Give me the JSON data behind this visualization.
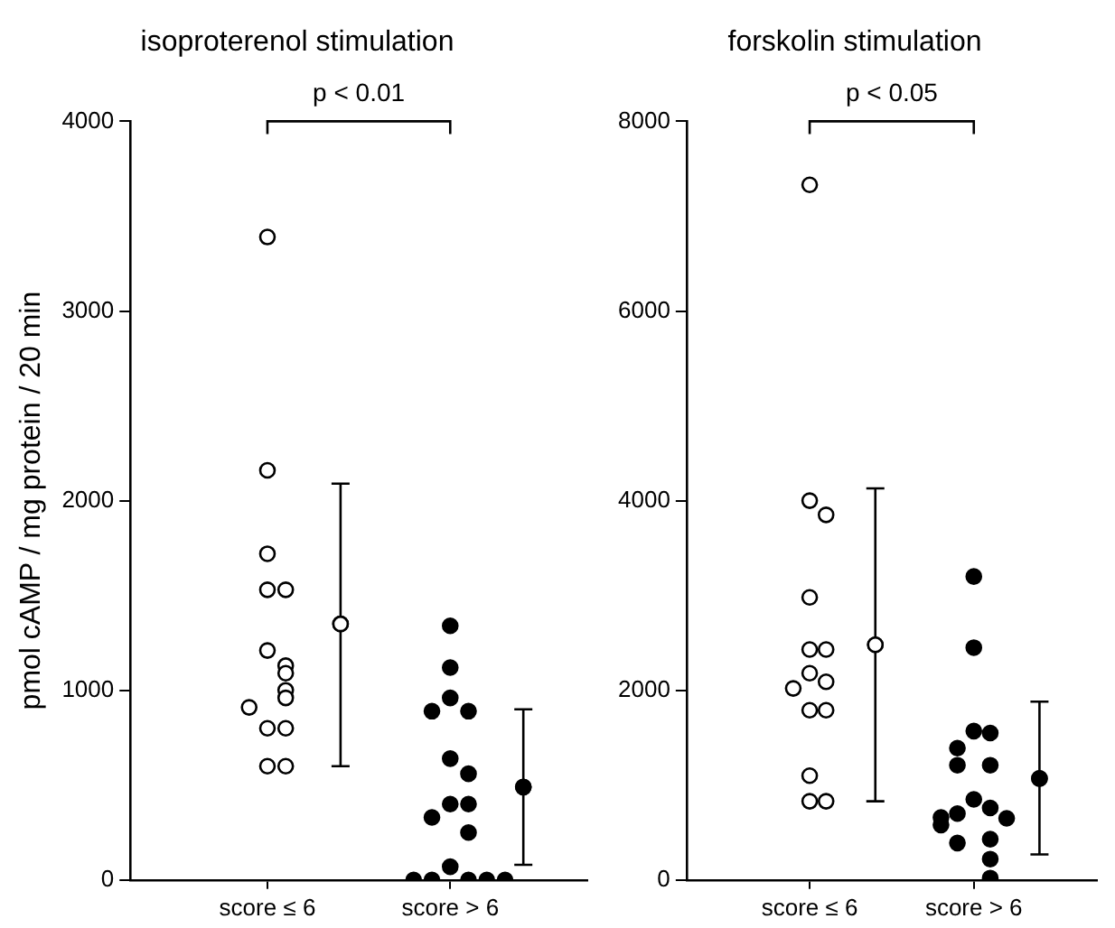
{
  "chart_data": [
    {
      "type": "scatter",
      "title": "isoproterenol stimulation",
      "ylabel": "pmol cAMP / mg protein / 20 min",
      "categories": [
        "score ≤ 6",
        "score > 6"
      ],
      "ylim": [
        0,
        4000
      ],
      "yticks": [
        0,
        1000,
        2000,
        3000,
        4000
      ],
      "grid": false,
      "legend": false,
      "marker": "circle",
      "annotations": [
        "p < 0.01"
      ],
      "series": [
        {
          "type": "scatter",
          "color": "#ffffff",
          "x": [
            "score ≤ 6",
            "score ≤ 6",
            "score ≤ 6",
            "score ≤ 6",
            "score ≤ 6",
            "score ≤ 6",
            "score ≤ 6",
            "score ≤ 6",
            "score ≤ 6",
            "score ≤ 6",
            "score ≤ 6",
            "score ≤ 6",
            "score ≤ 6",
            "score ≤ 6",
            "score ≤ 6"
          ],
          "values": [
            3390,
            2160,
            1720,
            1530,
            1530,
            1210,
            1130,
            1090,
            1000,
            960,
            910,
            800,
            800,
            600,
            600
          ]
        },
        {
          "type": "scatter",
          "color": "#000000",
          "x": [
            "score > 6",
            "score > 6",
            "score > 6",
            "score > 6",
            "score > 6",
            "score > 6",
            "score > 6",
            "score > 6",
            "score > 6",
            "score > 6",
            "score > 6",
            "score > 6",
            "score > 6",
            "score > 6",
            "score > 6",
            "score > 6",
            "score > 6"
          ],
          "values": [
            1340,
            1120,
            960,
            890,
            890,
            640,
            560,
            400,
            400,
            330,
            250,
            70,
            0,
            0,
            0,
            0,
            0
          ]
        },
        {
          "type": "scatter",
          "color": "#ffffff",
          "x": [
            "score ≤ 6"
          ],
          "values": [
            1350
          ],
          "errors": [
            [
              600,
              2090
            ]
          ]
        },
        {
          "type": "scatter",
          "color": "#000000",
          "x": [
            "score > 6"
          ],
          "values": [
            490
          ],
          "errors": [
            [
              80,
              900
            ]
          ]
        }
      ]
    },
    {
      "type": "scatter",
      "title": "forskolin stimulation",
      "categories": [
        "score ≤ 6",
        "score > 6"
      ],
      "ylim": [
        0,
        8000
      ],
      "yticks": [
        0,
        2000,
        4000,
        6000,
        8000
      ],
      "grid": false,
      "legend": false,
      "marker": "circle",
      "annotations": [
        "p < 0.05"
      ],
      "series": [
        {
          "type": "scatter",
          "color": "#ffffff",
          "x": [
            "score ≤ 6",
            "score ≤ 6",
            "score ≤ 6",
            "score ≤ 6",
            "score ≤ 6",
            "score ≤ 6",
            "score ≤ 6",
            "score ≤ 6",
            "score ≤ 6",
            "score ≤ 6",
            "score ≤ 6",
            "score ≤ 6",
            "score ≤ 6",
            "score ≤ 6"
          ],
          "values": [
            7330,
            4000,
            3850,
            2980,
            2430,
            2430,
            2180,
            2090,
            2020,
            1790,
            1790,
            1100,
            830,
            830
          ]
        },
        {
          "type": "scatter",
          "color": "#000000",
          "x": [
            "score > 6",
            "score > 6",
            "score > 6",
            "score > 6",
            "score > 6",
            "score > 6",
            "score > 6",
            "score > 6",
            "score > 6",
            "score > 6",
            "score > 6",
            "score > 6",
            "score > 6",
            "score > 6",
            "score > 6",
            "score > 6",
            "score > 6"
          ],
          "values": [
            3200,
            2450,
            1570,
            1550,
            1390,
            1210,
            1210,
            850,
            760,
            700,
            650,
            660,
            580,
            430,
            390,
            220,
            20
          ]
        },
        {
          "type": "scatter",
          "color": "#ffffff",
          "x": [
            "score ≤ 6"
          ],
          "values": [
            2480
          ],
          "errors": [
            [
              830,
              4130
            ]
          ]
        },
        {
          "type": "scatter",
          "color": "#000000",
          "x": [
            "score > 6"
          ],
          "values": [
            1070
          ],
          "errors": [
            [
              270,
              1880
            ]
          ]
        }
      ]
    }
  ]
}
